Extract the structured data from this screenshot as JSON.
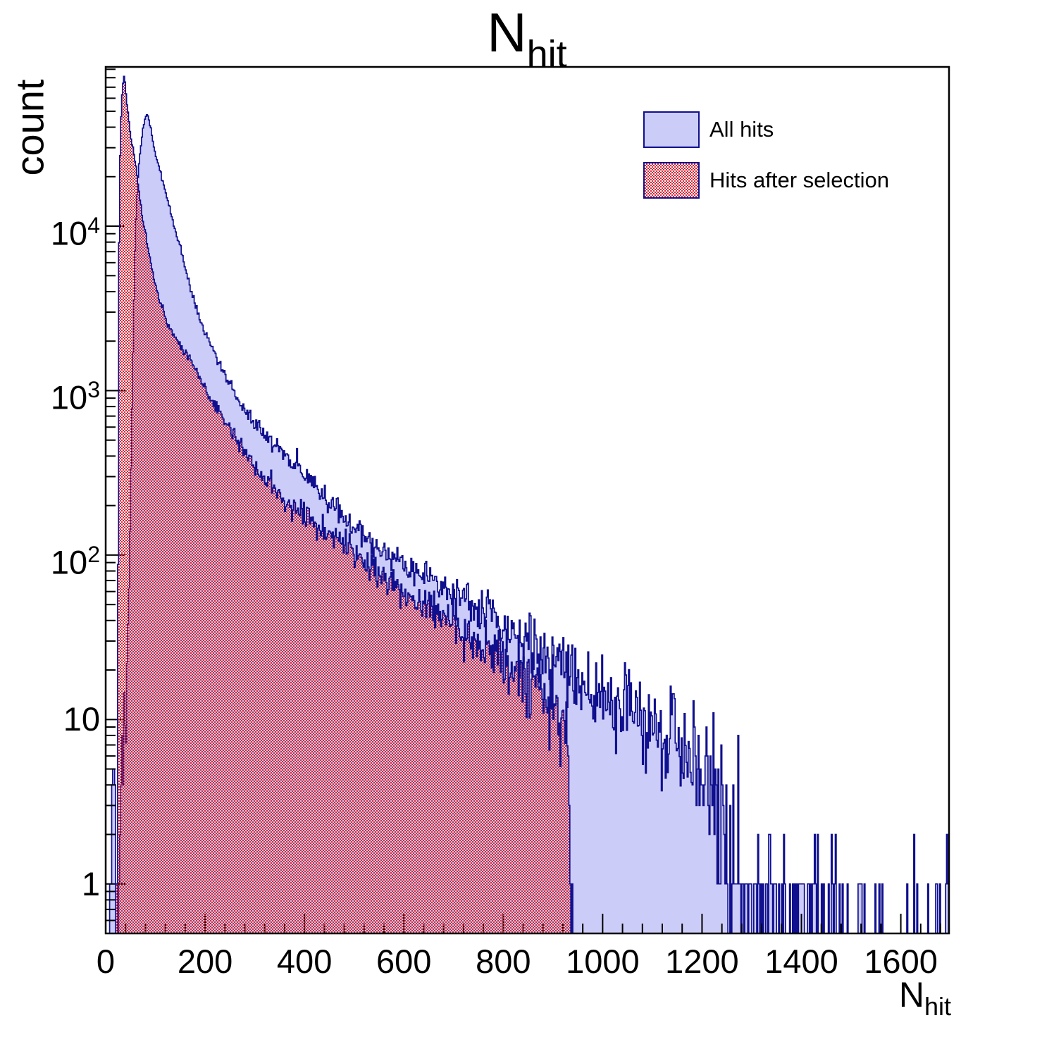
{
  "title": {
    "main": "N",
    "sub": "hit"
  },
  "legend": {
    "items": [
      {
        "label": "All hits",
        "swatch": "solid"
      },
      {
        "label": "Hits after selection",
        "swatch": "checker"
      }
    ]
  },
  "palette": {
    "fill": "#ccccf8",
    "line": "#10108f",
    "hatch_red": "#d62839",
    "axis": "#000000",
    "background": "#ffffff"
  },
  "chart_data": {
    "type": "area",
    "subtype": "step-histogram",
    "title": "N_hit",
    "xlabel": {
      "main": "N",
      "sub": "hit"
    },
    "ylabel": "count",
    "x_lim": [
      0,
      1697
    ],
    "y_lim": [
      0.5,
      93000
    ],
    "y_scale": "log",
    "grid": false,
    "legend_position": "top-right",
    "bin_width": 2,
    "x_ticks": {
      "major": [
        0,
        200,
        400,
        600,
        800,
        1000,
        1200,
        1400,
        1600
      ],
      "labels": [
        "0",
        "200",
        "400",
        "600",
        "800",
        "1000",
        "1200",
        "1400",
        "1600"
      ],
      "minor_step": 40
    },
    "y_ticks": {
      "decades": [
        {
          "value": 1,
          "base": "1",
          "exp": ""
        },
        {
          "value": 10,
          "base": "10",
          "exp": ""
        },
        {
          "value": 100,
          "base": "10",
          "exp": "2"
        },
        {
          "value": 1000,
          "base": "10",
          "exp": "3"
        },
        {
          "value": 10000,
          "base": "10",
          "exp": "4"
        }
      ]
    },
    "series": [
      {
        "name": "All hits",
        "style": "solid",
        "seed": 42,
        "peak": {
          "x": 82,
          "y": 48000
        },
        "points": [
          [
            8,
            0.5
          ],
          [
            12,
            2.5
          ],
          [
            16,
            3
          ],
          [
            20,
            1.5
          ],
          [
            26,
            2
          ],
          [
            32,
            3.5
          ],
          [
            38,
            7
          ],
          [
            43,
            18
          ],
          [
            47,
            60
          ],
          [
            50,
            200
          ],
          [
            53,
            800
          ],
          [
            56,
            2500
          ],
          [
            59,
            7000
          ],
          [
            62,
            14000
          ],
          [
            66,
            22000
          ],
          [
            70,
            30000
          ],
          [
            75,
            39000
          ],
          [
            79,
            45000
          ],
          [
            82,
            48000
          ],
          [
            86,
            46000
          ],
          [
            90,
            40000
          ],
          [
            95,
            33000
          ],
          [
            100,
            28000
          ],
          [
            111,
            20800
          ],
          [
            125,
            14000
          ],
          [
            139,
            9800
          ],
          [
            155,
            6600
          ],
          [
            167,
            4580
          ],
          [
            180,
            3300
          ],
          [
            196,
            2400
          ],
          [
            213,
            1880
          ],
          [
            235,
            1350
          ],
          [
            255,
            1010
          ],
          [
            278,
            760
          ],
          [
            298,
            650
          ],
          [
            326,
            520
          ],
          [
            350,
            430
          ],
          [
            370,
            380
          ],
          [
            411,
            288
          ],
          [
            450,
            215
          ],
          [
            475,
            180
          ],
          [
            496,
            149
          ],
          [
            520,
            130
          ],
          [
            545,
            112
          ],
          [
            582,
            97
          ],
          [
            620,
            82
          ],
          [
            664,
            70
          ],
          [
            700,
            58
          ],
          [
            740,
            50
          ],
          [
            780,
            44
          ],
          [
            820,
            34
          ],
          [
            860,
            26
          ],
          [
            900,
            22
          ],
          [
            940,
            18
          ],
          [
            980,
            15
          ],
          [
            1020,
            12
          ],
          [
            1064,
            11
          ],
          [
            1100,
            9
          ],
          [
            1140,
            7.5
          ],
          [
            1180,
            6
          ],
          [
            1215,
            4
          ],
          [
            1235,
            2.2
          ],
          [
            1255,
            1.2
          ],
          [
            1280,
            0.8
          ],
          [
            1310,
            0.7
          ],
          [
            1340,
            0.5
          ],
          [
            1380,
            0.45
          ],
          [
            1420,
            0.4
          ],
          [
            1460,
            0.35
          ],
          [
            1500,
            0.2
          ],
          [
            1560,
            0.12
          ],
          [
            1620,
            0.12
          ],
          [
            1680,
            0.12
          ],
          [
            1697,
            0.4
          ]
        ]
      },
      {
        "name": "Hits after selection",
        "style": "checker",
        "seed": 99,
        "peak": {
          "x": 37,
          "y": 82000
        },
        "points": [
          [
            22,
            0.3
          ],
          [
            23,
            1
          ],
          [
            24,
            8
          ],
          [
            25,
            80
          ],
          [
            26,
            1500
          ],
          [
            27,
            8000
          ],
          [
            28,
            20000
          ],
          [
            30,
            38000
          ],
          [
            32,
            55000
          ],
          [
            34,
            70000
          ],
          [
            36,
            79000
          ],
          [
            37,
            82000
          ],
          [
            39,
            76000
          ],
          [
            41,
            64000
          ],
          [
            44,
            52000
          ],
          [
            48,
            40000
          ],
          [
            52,
            32000
          ],
          [
            58,
            27000
          ],
          [
            63,
            20000
          ],
          [
            68,
            15000
          ],
          [
            73,
            12000
          ],
          [
            78,
            10000
          ],
          [
            85,
            7400
          ],
          [
            92,
            5700
          ],
          [
            100,
            4400
          ],
          [
            111,
            3300
          ],
          [
            125,
            2600
          ],
          [
            140,
            2100
          ],
          [
            155,
            1800
          ],
          [
            170,
            1550
          ],
          [
            190,
            1150
          ],
          [
            213,
            880
          ],
          [
            235,
            700
          ],
          [
            255,
            558
          ],
          [
            278,
            430
          ],
          [
            298,
            351
          ],
          [
            326,
            280
          ],
          [
            350,
            230
          ],
          [
            370,
            205
          ],
          [
            411,
            164
          ],
          [
            450,
            130
          ],
          [
            475,
            118
          ],
          [
            496,
            107
          ],
          [
            520,
            95
          ],
          [
            545,
            78
          ],
          [
            582,
            65
          ],
          [
            620,
            56
          ],
          [
            664,
            47
          ],
          [
            700,
            38
          ],
          [
            740,
            30
          ],
          [
            780,
            26
          ],
          [
            820,
            20
          ],
          [
            850,
            17
          ],
          [
            880,
            14
          ],
          [
            905,
            12
          ],
          [
            920,
            10
          ],
          [
            928,
            8
          ],
          [
            933,
            4
          ],
          [
            937,
            1.5
          ],
          [
            940,
            0.4
          ]
        ]
      }
    ]
  }
}
